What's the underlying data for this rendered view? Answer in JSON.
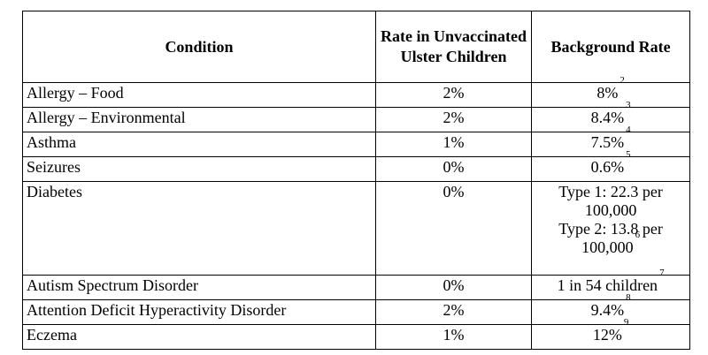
{
  "table": {
    "headers": {
      "condition": "Condition",
      "rate_unvaccinated": "Rate in Unvaccinated Ulster Children",
      "background_rate": "Background Rate"
    },
    "rows": [
      {
        "condition": "Allergy – Food",
        "rate": "2%",
        "background": [
          "8%"
        ],
        "footnote": "2"
      },
      {
        "condition": "Allergy – Environmental",
        "rate": "2%",
        "background": [
          "8.4%"
        ],
        "footnote": "3"
      },
      {
        "condition": "Asthma",
        "rate": "1%",
        "background": [
          "7.5%"
        ],
        "footnote": "4"
      },
      {
        "condition": "Seizures",
        "rate": "0%",
        "background": [
          "0.6%"
        ],
        "footnote": "5"
      },
      {
        "condition": "Diabetes",
        "rate": "0%",
        "background": [
          "Type 1: 22.3 per",
          "100,000",
          "Type 2: 13.8 per",
          "100,000"
        ],
        "footnote": "6"
      },
      {
        "condition": "Autism Spectrum Disorder",
        "rate": "0%",
        "background": [
          "1 in 54 children"
        ],
        "footnote": "7"
      },
      {
        "condition": "Attention Deficit Hyperactivity Disorder",
        "rate": "2%",
        "background": [
          "9.4%"
        ],
        "footnote": "8"
      },
      {
        "condition": "Eczema",
        "rate": "1%",
        "background": [
          "12%"
        ],
        "footnote": "9"
      }
    ]
  }
}
